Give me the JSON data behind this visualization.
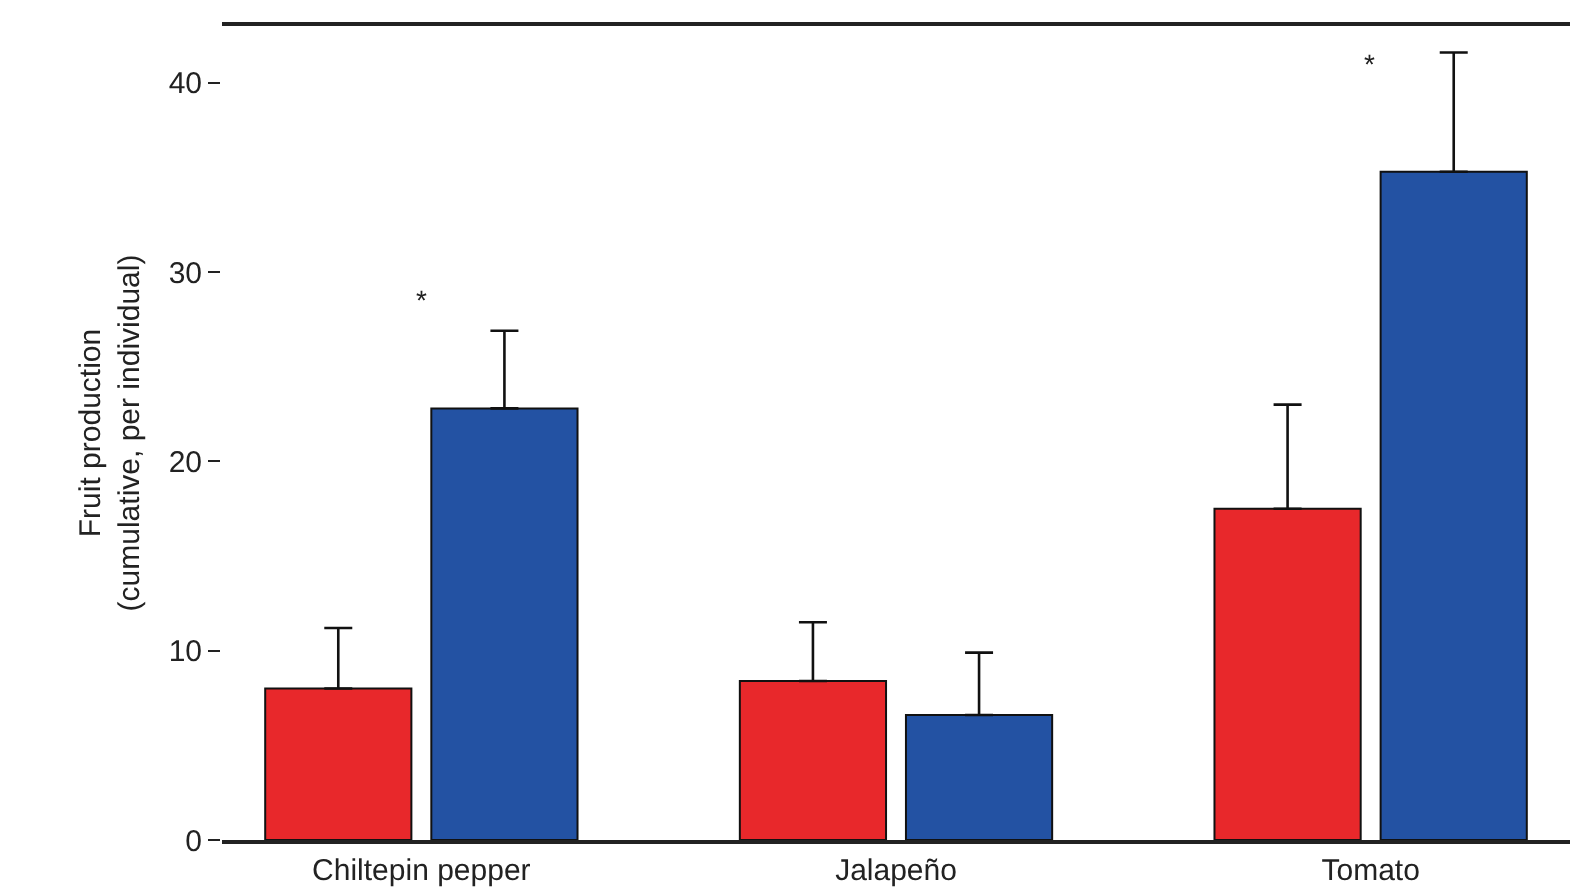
{
  "chart_data": {
    "type": "bar",
    "ylabel": "Fruit production\n(cumulative, per individual)",
    "categories": [
      "Chiltepin pepper",
      "Jalapeño",
      "Tomato"
    ],
    "series": [
      {
        "color": "#e8282b",
        "values": [
          8.0,
          8.4,
          17.5
        ],
        "errors": [
          3.2,
          3.1,
          5.5
        ]
      },
      {
        "color": "#2352a3",
        "values": [
          22.8,
          6.6,
          35.3
        ],
        "errors": [
          4.1,
          3.3,
          6.3
        ]
      }
    ],
    "ylim": [
      0,
      43
    ],
    "yticks": [
      0,
      10,
      20,
      30,
      40
    ],
    "grid": false,
    "annotations": [
      "*",
      "*"
    ]
  }
}
